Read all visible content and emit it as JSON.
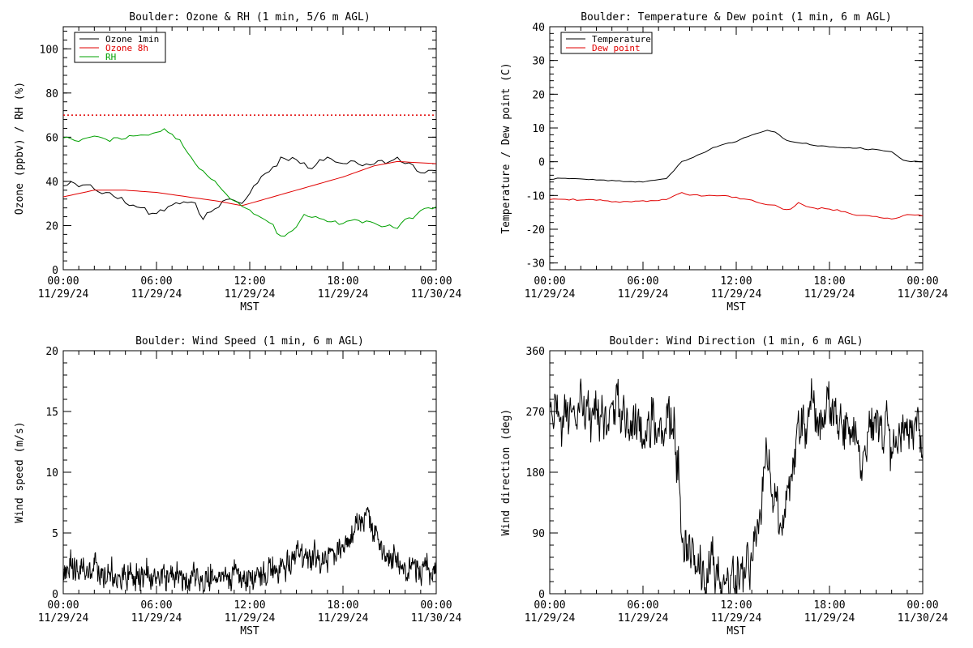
{
  "chart_data": [
    {
      "type": "line",
      "title": "Boulder: Ozone & RH (1 min, 5/6 m AGL)",
      "ylabel": "Ozone (ppbv) / RH (%)",
      "xlabel": "MST",
      "xlim": [
        0,
        24
      ],
      "ylim": [
        0,
        110
      ],
      "x_ticks": [
        {
          "time": "00:00",
          "date": "11/29/24"
        },
        {
          "time": "06:00",
          "date": "11/29/24"
        },
        {
          "time": "12:00",
          "date": "11/29/24"
        },
        {
          "time": "18:00",
          "date": "11/29/24"
        },
        {
          "time": "00:00",
          "date": "11/30/24"
        }
      ],
      "y_ticks": [
        "0",
        "20",
        "40",
        "60",
        "80",
        "100"
      ],
      "legend_position": "top-left",
      "reference_lines": [
        {
          "y": 70,
          "style": "dotted",
          "color": "#e00000"
        }
      ],
      "series": [
        {
          "name": "Ozone 1min",
          "color": "#000000",
          "noise": 1.8,
          "wiggle_step": 0.25,
          "knots": [
            [
              0,
              38
            ],
            [
              1,
              39
            ],
            [
              2,
              37
            ],
            [
              3,
              35
            ],
            [
              4,
              31
            ],
            [
              5,
              27
            ],
            [
              5.8,
              24
            ],
            [
              6.5,
              28
            ],
            [
              7.5,
              31
            ],
            [
              8.5,
              30
            ],
            [
              9,
              23
            ],
            [
              9.5,
              27
            ],
            [
              10.5,
              32
            ],
            [
              11.5,
              31
            ],
            [
              12,
              34
            ],
            [
              12.5,
              40
            ],
            [
              13.5,
              46
            ],
            [
              14,
              50
            ],
            [
              15,
              49
            ],
            [
              16,
              46
            ],
            [
              17,
              51
            ],
            [
              18,
              49
            ],
            [
              19,
              48
            ],
            [
              20,
              49
            ],
            [
              21,
              50
            ],
            [
              22,
              48
            ],
            [
              23,
              44
            ],
            [
              24,
              44
            ]
          ]
        },
        {
          "name": "Ozone 8h",
          "color": "#e00000",
          "noise": 0,
          "wiggle_step": 0.25,
          "knots": [
            [
              0,
              33
            ],
            [
              2,
              36
            ],
            [
              4,
              36
            ],
            [
              6,
              35
            ],
            [
              8,
              33
            ],
            [
              10,
              31
            ],
            [
              11.5,
              29
            ],
            [
              12,
              30
            ],
            [
              14,
              34
            ],
            [
              16,
              38
            ],
            [
              18,
              42
            ],
            [
              20,
              47
            ],
            [
              21.5,
              49
            ],
            [
              24,
              48
            ]
          ]
        },
        {
          "name": "RH",
          "color": "#00a000",
          "noise": 1.2,
          "wiggle_step": 0.25,
          "knots": [
            [
              0,
              60
            ],
            [
              1,
              58
            ],
            [
              2,
              60
            ],
            [
              3,
              59
            ],
            [
              4,
              60
            ],
            [
              5,
              62
            ],
            [
              6.5,
              63
            ],
            [
              7.5,
              58
            ],
            [
              8.5,
              48
            ],
            [
              9.5,
              41
            ],
            [
              10.5,
              35
            ],
            [
              11.5,
              29
            ],
            [
              12.5,
              24
            ],
            [
              13.5,
              20
            ],
            [
              14,
              15
            ],
            [
              14.5,
              16
            ],
            [
              15,
              20
            ],
            [
              15.5,
              25
            ],
            [
              16,
              24
            ],
            [
              17,
              22
            ],
            [
              18,
              21
            ],
            [
              19,
              22
            ],
            [
              20,
              21
            ],
            [
              21,
              20
            ],
            [
              21.5,
              18
            ],
            [
              22,
              22
            ],
            [
              23,
              26
            ],
            [
              24,
              28
            ]
          ]
        }
      ]
    },
    {
      "type": "line",
      "title": "Boulder: Temperature & Dew point (1 min, 6 m AGL)",
      "ylabel": "Temperature / Dew point (C)",
      "xlabel": "MST",
      "xlim": [
        0,
        24
      ],
      "ylim": [
        -32,
        40
      ],
      "x_ticks": [
        {
          "time": "00:00",
          "date": "11/29/24"
        },
        {
          "time": "06:00",
          "date": "11/29/24"
        },
        {
          "time": "12:00",
          "date": "11/29/24"
        },
        {
          "time": "18:00",
          "date": "11/29/24"
        },
        {
          "time": "00:00",
          "date": "11/30/24"
        }
      ],
      "y_ticks": [
        "-30",
        "-20",
        "-10",
        "0",
        "10",
        "20",
        "30",
        "40"
      ],
      "legend_position": "top-left",
      "series": [
        {
          "name": "Temperature",
          "color": "#000000",
          "noise": 0.25,
          "wiggle_step": 0.25,
          "knots": [
            [
              0,
              -5
            ],
            [
              2,
              -5
            ],
            [
              4,
              -5.5
            ],
            [
              6,
              -6
            ],
            [
              7.5,
              -5
            ],
            [
              8.5,
              0
            ],
            [
              9.5,
              2
            ],
            [
              11,
              5
            ],
            [
              12,
              6
            ],
            [
              13,
              8
            ],
            [
              14,
              9.5
            ],
            [
              14.5,
              9
            ],
            [
              15,
              7
            ],
            [
              15.5,
              6
            ],
            [
              16,
              5.5
            ],
            [
              17,
              5
            ],
            [
              18,
              4.5
            ],
            [
              19,
              4
            ],
            [
              20,
              4
            ],
            [
              21,
              3.5
            ],
            [
              22,
              3
            ],
            [
              22.5,
              1
            ],
            [
              23,
              0
            ],
            [
              24,
              0
            ]
          ]
        },
        {
          "name": "Dew point",
          "color": "#e00000",
          "noise": 0.4,
          "wiggle_step": 0.25,
          "knots": [
            [
              0,
              -11
            ],
            [
              2,
              -11.5
            ],
            [
              4,
              -11.5
            ],
            [
              6,
              -11.5
            ],
            [
              7.5,
              -11
            ],
            [
              8.5,
              -9
            ],
            [
              9.5,
              -10
            ],
            [
              10.5,
              -10
            ],
            [
              11.5,
              -10
            ],
            [
              12.5,
              -11
            ],
            [
              13.5,
              -12
            ],
            [
              14.5,
              -13
            ],
            [
              15,
              -14
            ],
            [
              15.5,
              -14
            ],
            [
              16,
              -12
            ],
            [
              17,
              -14
            ],
            [
              18,
              -14
            ],
            [
              19,
              -15
            ],
            [
              20,
              -16
            ],
            [
              21,
              -16
            ],
            [
              22,
              -17
            ],
            [
              22.5,
              -16
            ],
            [
              23,
              -15.5
            ],
            [
              24,
              -16
            ]
          ]
        }
      ]
    },
    {
      "type": "line",
      "title": "Boulder: Wind Speed (1 min, 6 m AGL)",
      "ylabel": "Wind speed (m/s)",
      "xlabel": "MST",
      "xlim": [
        0,
        24
      ],
      "ylim": [
        0,
        20
      ],
      "x_ticks": [
        {
          "time": "00:00",
          "date": "11/29/24"
        },
        {
          "time": "06:00",
          "date": "11/29/24"
        },
        {
          "time": "12:00",
          "date": "11/29/24"
        },
        {
          "time": "18:00",
          "date": "11/29/24"
        },
        {
          "time": "00:00",
          "date": "11/30/24"
        }
      ],
      "y_ticks": [
        "0",
        "5",
        "10",
        "15",
        "20"
      ],
      "series": [
        {
          "name": "",
          "color": "#000000",
          "noise": 1.3,
          "wiggle_step": 0.03,
          "knots": [
            [
              0,
              2
            ],
            [
              2,
              1.8
            ],
            [
              4,
              1.5
            ],
            [
              6,
              1.4
            ],
            [
              8,
              1.3
            ],
            [
              10,
              1.4
            ],
            [
              12,
              1.3
            ],
            [
              13,
              1.8
            ],
            [
              14,
              2.2
            ],
            [
              15,
              2.8
            ],
            [
              16,
              3
            ],
            [
              17,
              3
            ],
            [
              18,
              4
            ],
            [
              19,
              5.5
            ],
            [
              19.6,
              7.5
            ],
            [
              20,
              5
            ],
            [
              21,
              3
            ],
            [
              22,
              2
            ],
            [
              23,
              1.8
            ],
            [
              24,
              1.5
            ]
          ]
        }
      ]
    },
    {
      "type": "line",
      "title": "Boulder: Wind Direction (1 min, 6 m AGL)",
      "ylabel": "Wind direction (deg)",
      "xlabel": "MST",
      "xlim": [
        0,
        24
      ],
      "ylim": [
        0,
        360
      ],
      "x_ticks": [
        {
          "time": "00:00",
          "date": "11/29/24"
        },
        {
          "time": "06:00",
          "date": "11/29/24"
        },
        {
          "time": "12:00",
          "date": "11/29/24"
        },
        {
          "time": "18:00",
          "date": "11/29/24"
        },
        {
          "time": "00:00",
          "date": "11/30/24"
        }
      ],
      "y_ticks": [
        "0",
        "90",
        "180",
        "270",
        "360"
      ],
      "series": [
        {
          "name": "",
          "color": "#000000",
          "noise": 45,
          "wiggle_step": 0.04,
          "knots": [
            [
              0,
              265
            ],
            [
              2,
              260
            ],
            [
              4,
              265
            ],
            [
              6,
              255
            ],
            [
              8,
              250
            ],
            [
              8.5,
              120
            ],
            [
              9,
              40
            ],
            [
              10,
              30
            ],
            [
              11,
              30
            ],
            [
              12,
              30
            ],
            [
              13,
              40
            ],
            [
              14,
              200
            ],
            [
              15,
              100
            ],
            [
              16,
              250
            ],
            [
              17,
              265
            ],
            [
              18,
              270
            ],
            [
              19,
              265
            ],
            [
              20,
              200
            ],
            [
              21,
              250
            ],
            [
              22,
              230
            ],
            [
              23,
              240
            ],
            [
              24,
              230
            ]
          ]
        }
      ]
    }
  ]
}
